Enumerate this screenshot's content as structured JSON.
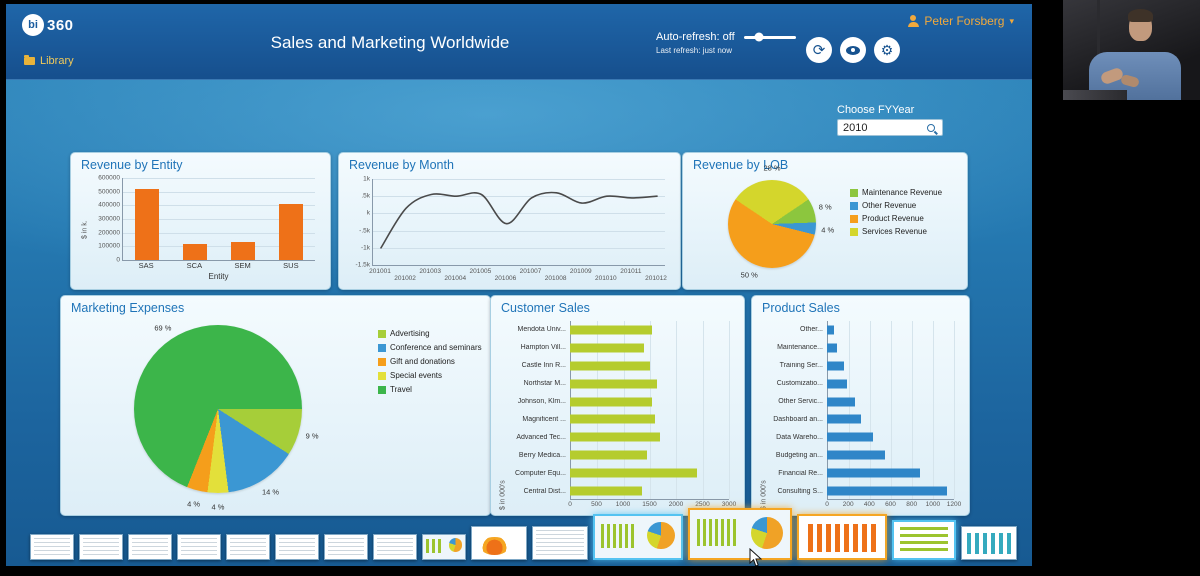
{
  "app": {
    "logo": {
      "circle": "bi",
      "rest": "360"
    },
    "breadcrumb": "Library",
    "title": "Sales and Marketing Worldwide",
    "auto_refresh": {
      "label": "Auto-refresh: off",
      "sub": "Last refresh: just now"
    },
    "user": {
      "name": "Peter Forsberg"
    },
    "filter": {
      "label": "Choose FYYear",
      "value": "2010"
    },
    "colors": {
      "header_blue": "#1d63a6",
      "accent_orange": "#f2a93c",
      "panel_title_blue": "#1f74b8"
    },
    "icons": [
      "refresh-icon",
      "eye-icon",
      "gear-icon",
      "search-icon",
      "folder-icon",
      "user-icon"
    ]
  },
  "chart_data": [
    {
      "id": "revenue-by-entity",
      "type": "bar",
      "orientation": "vertical",
      "title": "Revenue by Entity",
      "categories": [
        "SAS",
        "SCA",
        "SEM",
        "SUS"
      ],
      "values": [
        520000,
        115000,
        130000,
        410000
      ],
      "xlabel": "Entity",
      "ylabel": "$ in k.",
      "ylim": [
        0,
        600000
      ],
      "yticks": [
        "600000",
        "500000",
        "400000",
        "300000",
        "200000",
        "100000",
        "0"
      ],
      "color": "#ee7118",
      "grid": true
    },
    {
      "id": "revenue-by-month",
      "type": "line",
      "title": "Revenue by Month",
      "x": [
        "201001",
        "201002",
        "201003",
        "201004",
        "201005",
        "201006",
        "201007",
        "201008",
        "201009",
        "201010",
        "201011",
        "201012"
      ],
      "values": [
        -1.0,
        0.15,
        0.55,
        0.5,
        0.55,
        -0.3,
        0.45,
        0.6,
        0.3,
        0.5,
        0.45,
        0.5
      ],
      "unit": "k",
      "ylim": [
        -1.5,
        1
      ],
      "yticks": [
        {
          "label": "1k",
          "v": 1
        },
        {
          "label": ".5k",
          "v": 0.5
        },
        {
          "label": "k",
          "v": 0
        },
        {
          "label": "-.5k",
          "v": -0.5
        },
        {
          "label": "-1k",
          "v": -1
        },
        {
          "label": "-1.5k",
          "v": -1.5
        }
      ],
      "color": "#4a4a4a",
      "grid": true
    },
    {
      "id": "revenue-by-lob",
      "type": "pie",
      "title": "Revenue by LOB",
      "start_deg": -56,
      "slices": [
        {
          "label": "Services Revenue",
          "value": 28,
          "pct": "28 %",
          "color": "#d4d62c"
        },
        {
          "label": "Maintenance Revenue",
          "value": 8,
          "pct": "8 %",
          "color": "#8cc63e"
        },
        {
          "label": "Other Revenue",
          "value": 4,
          "pct": "4 %",
          "color": "#3b97d3"
        },
        {
          "label": "Product Revenue",
          "value": 50,
          "pct": "50 %",
          "color": "#f59e1b"
        }
      ],
      "legend": [
        {
          "label": "Maintenance Revenue",
          "color": "#8cc63e"
        },
        {
          "label": "Other Revenue",
          "color": "#3b97d3"
        },
        {
          "label": "Product Revenue",
          "color": "#f59e1b"
        },
        {
          "label": "Services Revenue",
          "color": "#d4d62c"
        }
      ],
      "legend_position": "right"
    },
    {
      "id": "marketing-expenses",
      "type": "pie",
      "title": "Marketing Expenses",
      "start_deg": 90,
      "slices": [
        {
          "label": "Advertising",
          "value": 9,
          "pct": "9 %",
          "color": "#a6ce39"
        },
        {
          "label": "Conference and seminars",
          "value": 14,
          "pct": "14 %",
          "color": "#3b97d3"
        },
        {
          "label": "Special events",
          "value": 4,
          "pct": "4 %",
          "color": "#e3e03a"
        },
        {
          "label": "Gift and donations",
          "value": 4,
          "pct": "4 %",
          "color": "#f59e1b"
        },
        {
          "label": "Travel",
          "value": 69,
          "pct": "69 %",
          "color": "#3cb54a"
        }
      ],
      "legend": [
        {
          "label": "Advertising",
          "color": "#a6ce39"
        },
        {
          "label": "Conference and seminars",
          "color": "#3b97d3"
        },
        {
          "label": "Gift and donations",
          "color": "#f59e1b"
        },
        {
          "label": "Special events",
          "color": "#e3e03a"
        },
        {
          "label": "Travel",
          "color": "#3cb54a"
        }
      ],
      "legend_position": "right"
    },
    {
      "id": "customer-sales",
      "type": "bar",
      "orientation": "horizontal",
      "title": "Customer Sales",
      "categories": [
        "Mendota Univ...",
        "Hampton Vill...",
        "Castle Inn R...",
        "Northstar M...",
        "Johnson, Klm...",
        "Magnificent ...",
        "Advanced Tec...",
        "Berry Medica...",
        "Computer Equ...",
        "Central Dist..."
      ],
      "values": [
        1550,
        1400,
        1500,
        1650,
        1550,
        1600,
        1700,
        1450,
        2400,
        1350
      ],
      "ylabel": "$ in 000's",
      "xmax": 3000,
      "xticks": [
        0,
        500,
        1000,
        1500,
        2000,
        2500,
        3000
      ],
      "color": "#b5cc2e",
      "grid": true
    },
    {
      "id": "product-sales",
      "type": "bar",
      "orientation": "horizontal",
      "title": "Product Sales",
      "categories": [
        "Other...",
        "Maintenance...",
        "Training Ser...",
        "Customizatio...",
        "Other Servic...",
        "Dashboard an...",
        "Data Wareho...",
        "Budgeting an...",
        "Financial Re...",
        "Consulting S..."
      ],
      "values": [
        70,
        90,
        160,
        190,
        260,
        320,
        430,
        550,
        880,
        1130
      ],
      "ylabel": "$ in 000's",
      "xmax": 1200,
      "xticks": [
        0,
        200,
        400,
        600,
        800,
        1000,
        1200
      ],
      "color": "#2f86c8",
      "grid": true
    }
  ],
  "filmstrip": {
    "thumbs": [
      {
        "type": "sheet",
        "size": "s"
      },
      {
        "type": "sheet",
        "size": "s"
      },
      {
        "type": "sheet",
        "size": "s"
      },
      {
        "type": "sheet",
        "size": "s"
      },
      {
        "type": "sheet",
        "size": "s"
      },
      {
        "type": "sheet",
        "size": "s"
      },
      {
        "type": "sheet",
        "size": "s"
      },
      {
        "type": "sheet",
        "size": "s"
      },
      {
        "type": "dash",
        "size": "s"
      },
      {
        "type": "chart-orange",
        "size": "m"
      },
      {
        "type": "sheet",
        "size": "m"
      },
      {
        "type": "dash",
        "size": "l",
        "border": "blue"
      },
      {
        "type": "dash",
        "size": "xl",
        "border": "orange",
        "active": true
      },
      {
        "type": "bars-orange",
        "size": "l",
        "border": "orange"
      },
      {
        "type": "dash-green",
        "size": "m2",
        "border": "blue"
      },
      {
        "type": "bars-teal",
        "size": "m"
      }
    ]
  }
}
